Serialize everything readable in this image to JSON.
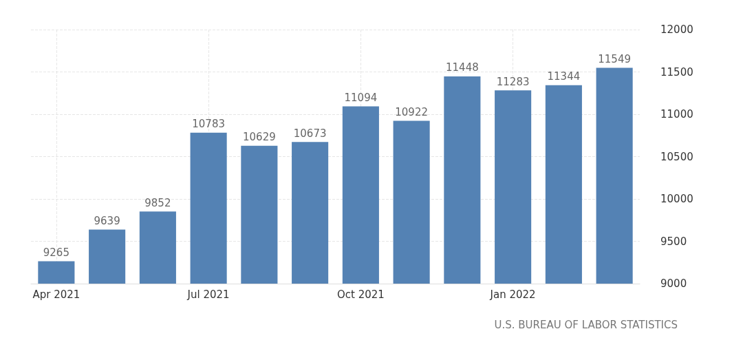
{
  "chart_data": {
    "type": "bar",
    "categories": [
      "Apr 2021",
      null,
      null,
      "Jul 2021",
      null,
      null,
      "Oct 2021",
      null,
      null,
      "Jan 2022",
      null,
      null
    ],
    "values": [
      9265,
      9639,
      9852,
      10783,
      10629,
      10673,
      11094,
      10922,
      11448,
      11283,
      11344,
      11549
    ],
    "color": "#5482b4",
    "ylim": [
      9000,
      12000
    ],
    "yticks": [
      9000,
      9500,
      10000,
      10500,
      11000,
      11500,
      12000
    ],
    "grid": true,
    "data_labels": true,
    "annotations": [
      "U.S. BUREAU OF LABOR STATISTICS"
    ]
  }
}
